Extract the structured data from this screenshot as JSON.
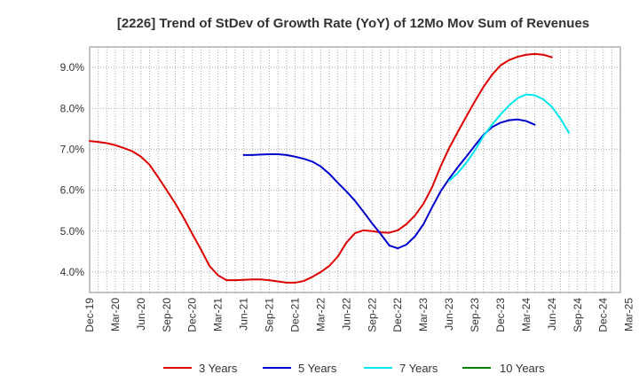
{
  "chart_data": {
    "type": "line",
    "title": "[2226]  Trend of StDev of Growth Rate (YoY) of 12Mo Mov Sum of Revenues",
    "xlabel": "",
    "ylabel": "",
    "ylim": [
      3.5,
      9.5
    ],
    "y_ticks": [
      "4.0%",
      "5.0%",
      "6.0%",
      "7.0%",
      "8.0%",
      "9.0%"
    ],
    "y_tick_values": [
      4.0,
      5.0,
      6.0,
      7.0,
      8.0,
      9.0
    ],
    "x_tick_labels": [
      "Dec-19",
      "Mar-20",
      "Jun-20",
      "Sep-20",
      "Dec-20",
      "Mar-21",
      "Jun-21",
      "Sep-21",
      "Dec-21",
      "Mar-22",
      "Jun-22",
      "Sep-22",
      "Dec-22",
      "Mar-23",
      "Jun-23",
      "Sep-23",
      "Dec-23",
      "Mar-24",
      "Jun-24",
      "Sep-24",
      "Dec-24",
      "Mar-25"
    ],
    "x_count_months": 63,
    "series": [
      {
        "name": "3 Years",
        "color": "#dd0000",
        "start_index": 0,
        "values": [
          7.2,
          7.18,
          7.15,
          7.1,
          7.03,
          6.95,
          6.82,
          6.62,
          6.32,
          6.0,
          5.68,
          5.32,
          4.93,
          4.55,
          4.15,
          3.92,
          3.8,
          3.8,
          3.81,
          3.82,
          3.82,
          3.8,
          3.77,
          3.74,
          3.74,
          3.78,
          3.88,
          4.0,
          4.15,
          4.38,
          4.72,
          4.95,
          5.02,
          5.0,
          4.97,
          4.96,
          5.02,
          5.17,
          5.38,
          5.67,
          6.07,
          6.58,
          7.03,
          7.42,
          7.8,
          8.17,
          8.52,
          8.82,
          9.05,
          9.18,
          9.26,
          9.31,
          9.33,
          9.31,
          9.25
        ]
      },
      {
        "name": "5 Years",
        "color": "#0000cc",
        "start_index": 18,
        "values": [
          6.86,
          6.86,
          6.87,
          6.88,
          6.88,
          6.86,
          6.82,
          6.77,
          6.7,
          6.58,
          6.4,
          6.18,
          5.97,
          5.74,
          5.47,
          5.19,
          4.93,
          4.65,
          4.58,
          4.67,
          4.87,
          5.17,
          5.58,
          5.97,
          6.28,
          6.56,
          6.82,
          7.09,
          7.35,
          7.54,
          7.65,
          7.71,
          7.73,
          7.69,
          7.6
        ]
      },
      {
        "name": "7 Years",
        "color": "#00e5ee",
        "start_index": 42,
        "values": [
          6.23,
          6.42,
          6.67,
          6.97,
          7.32,
          7.6,
          7.85,
          8.07,
          8.25,
          8.34,
          8.32,
          8.22,
          8.04,
          7.75,
          7.4
        ]
      },
      {
        "name": "10 Years",
        "color": "#008000",
        "start_index": 0,
        "values": []
      }
    ]
  }
}
